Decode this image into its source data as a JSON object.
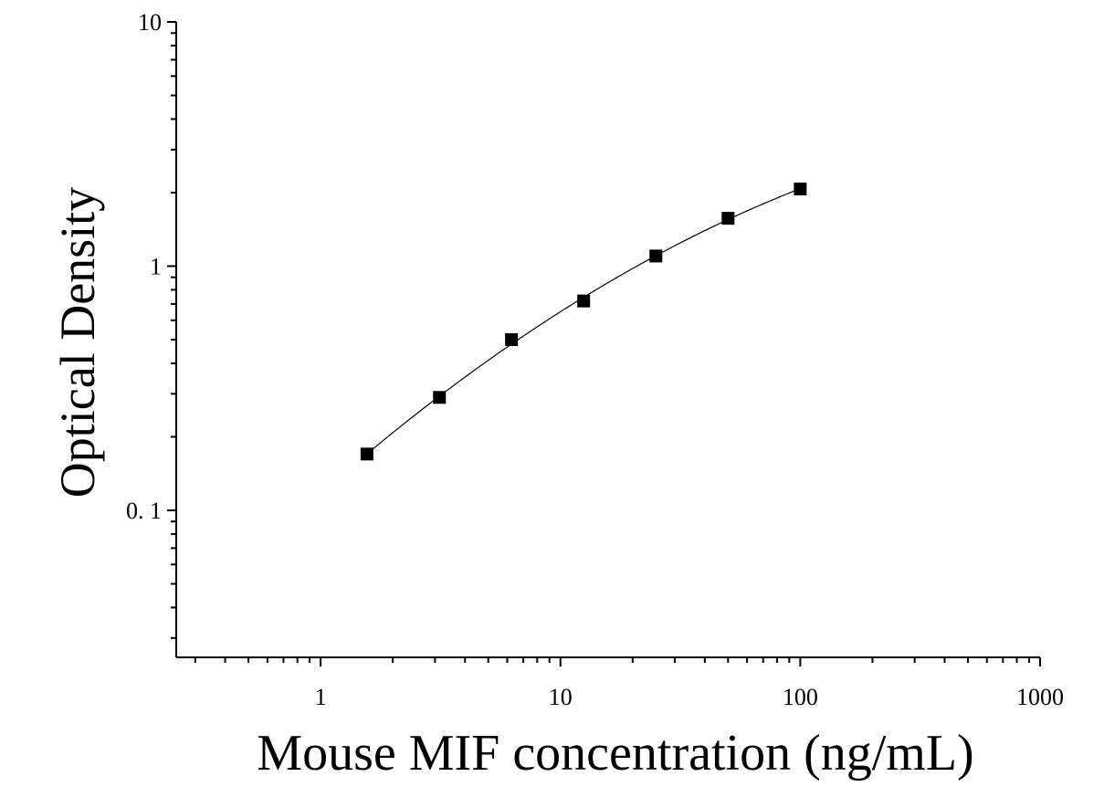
{
  "chart_data": {
    "type": "scatter",
    "title": "",
    "xlabel": "Mouse MIF concentration (ng/mL)",
    "ylabel": "Optical Density",
    "x_scale": "log",
    "y_scale": "log",
    "xlim": [
      0.25,
      1000
    ],
    "ylim": [
      0.025,
      10
    ],
    "x_ticks": [
      {
        "value": 1,
        "label": "1"
      },
      {
        "value": 10,
        "label": "10"
      },
      {
        "value": 100,
        "label": "100"
      },
      {
        "value": 1000,
        "label": "1000"
      }
    ],
    "y_ticks": [
      {
        "value": 0.1,
        "label": "0. 1"
      },
      {
        "value": 1,
        "label": "1"
      },
      {
        "value": 10,
        "label": "10"
      }
    ],
    "grid": false,
    "legend": "none",
    "marker": "square",
    "color": "#000000",
    "series": [
      {
        "x": [
          1.56,
          3.13,
          6.25,
          12.5,
          25,
          50,
          100
        ],
        "y": [
          0.17,
          0.29,
          0.5,
          0.72,
          1.1,
          1.57,
          2.07
        ]
      }
    ],
    "fit_curve": true
  }
}
